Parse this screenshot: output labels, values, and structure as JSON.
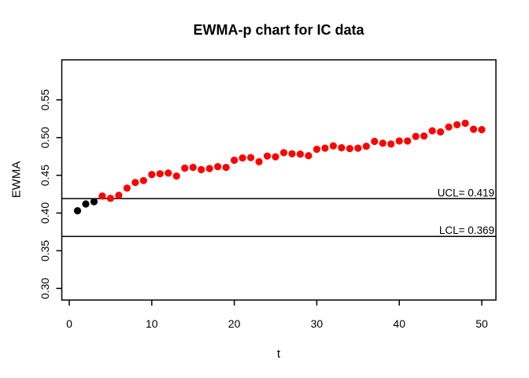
{
  "figure": {
    "title": "EWMA-p chart for IC data",
    "xlabel": "t",
    "ylabel": "EWMA"
  },
  "chart_data": {
    "type": "scatter",
    "title": "EWMA-p chart for IC data",
    "xlabel": "t",
    "ylabel": "EWMA",
    "grid": false,
    "legend": null,
    "xlim": [
      -0.96,
      51.96
    ],
    "ylim": [
      0.285,
      0.604
    ],
    "x_ticks": [
      0,
      10,
      20,
      30,
      40,
      50
    ],
    "x_tick_labels": [
      "0",
      "10",
      "20",
      "30",
      "40",
      "50"
    ],
    "y_ticks": [
      0.3,
      0.35,
      0.4,
      0.45,
      0.5,
      0.55
    ],
    "y_tick_labels": [
      "0.30",
      "0.35",
      "0.40",
      "0.45",
      "0.50",
      "0.55"
    ],
    "control_limits": [
      {
        "name": "UCL",
        "value": 0.419,
        "label": "UCL= 0.419"
      },
      {
        "name": "LCL",
        "value": 0.369,
        "label": "LCL= 0.369"
      }
    ],
    "marker": "filled-circle",
    "colors": {
      "initial_points": "#000000",
      "monitoring_points": "#ff0000"
    },
    "series": [
      {
        "name": "initial-black-points",
        "color": "#000000",
        "points": [
          {
            "t": 1,
            "v": 0.403
          },
          {
            "t": 2,
            "v": 0.412
          },
          {
            "t": 3,
            "v": 0.415
          }
        ]
      },
      {
        "name": "monitoring-red-points",
        "color": "#ff0000",
        "points": [
          {
            "t": 4,
            "v": 0.4225
          },
          {
            "t": 5,
            "v": 0.4195
          },
          {
            "t": 6,
            "v": 0.4235
          },
          {
            "t": 7,
            "v": 0.433
          },
          {
            "t": 8,
            "v": 0.4405
          },
          {
            "t": 9,
            "v": 0.443
          },
          {
            "t": 10,
            "v": 0.451
          },
          {
            "t": 11,
            "v": 0.452
          },
          {
            "t": 12,
            "v": 0.453
          },
          {
            "t": 13,
            "v": 0.449
          },
          {
            "t": 14,
            "v": 0.4595
          },
          {
            "t": 15,
            "v": 0.4605
          },
          {
            "t": 16,
            "v": 0.4575
          },
          {
            "t": 17,
            "v": 0.459
          },
          {
            "t": 18,
            "v": 0.4615
          },
          {
            "t": 19,
            "v": 0.4605
          },
          {
            "t": 20,
            "v": 0.47
          },
          {
            "t": 21,
            "v": 0.473
          },
          {
            "t": 22,
            "v": 0.4735
          },
          {
            "t": 23,
            "v": 0.468
          },
          {
            "t": 24,
            "v": 0.4755
          },
          {
            "t": 25,
            "v": 0.4745
          },
          {
            "t": 26,
            "v": 0.48
          },
          {
            "t": 27,
            "v": 0.4785
          },
          {
            "t": 28,
            "v": 0.478
          },
          {
            "t": 29,
            "v": 0.476
          },
          {
            "t": 30,
            "v": 0.4845
          },
          {
            "t": 31,
            "v": 0.486
          },
          {
            "t": 32,
            "v": 0.489
          },
          {
            "t": 33,
            "v": 0.4865
          },
          {
            "t": 34,
            "v": 0.4855
          },
          {
            "t": 35,
            "v": 0.486
          },
          {
            "t": 36,
            "v": 0.4885
          },
          {
            "t": 37,
            "v": 0.495
          },
          {
            "t": 38,
            "v": 0.4925
          },
          {
            "t": 39,
            "v": 0.4915
          },
          {
            "t": 40,
            "v": 0.4955
          },
          {
            "t": 41,
            "v": 0.4955
          },
          {
            "t": 42,
            "v": 0.5015
          },
          {
            "t": 43,
            "v": 0.502
          },
          {
            "t": 44,
            "v": 0.509
          },
          {
            "t": 45,
            "v": 0.5075
          },
          {
            "t": 46,
            "v": 0.514
          },
          {
            "t": 47,
            "v": 0.517
          },
          {
            "t": 48,
            "v": 0.519
          },
          {
            "t": 49,
            "v": 0.511
          },
          {
            "t": 50,
            "v": 0.5105
          }
        ]
      }
    ]
  }
}
